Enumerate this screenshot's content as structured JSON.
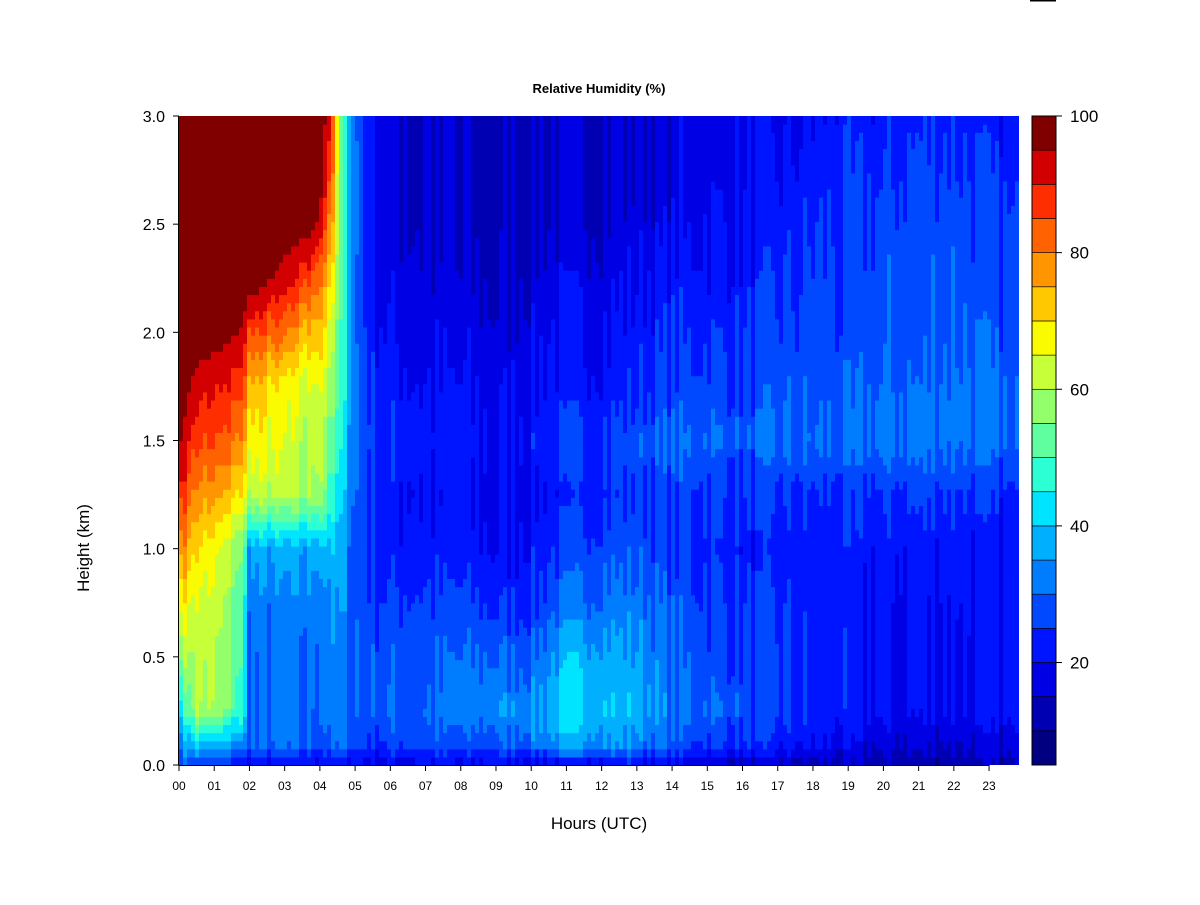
{
  "chart_data": {
    "type": "heatmap",
    "title": "Relative Humidity (%)",
    "xlabel": "Hours (UTC)",
    "ylabel": "Height (km)",
    "x_ticks": [
      "00",
      "01",
      "02",
      "03",
      "04",
      "05",
      "06",
      "07",
      "08",
      "09",
      "10",
      "11",
      "12",
      "13",
      "14",
      "15",
      "16",
      "17",
      "18",
      "19",
      "20",
      "21",
      "22",
      "23"
    ],
    "xlim": [
      0,
      23.85
    ],
    "y_ticks": [
      "0.0",
      "0.5",
      "1.0",
      "1.5",
      "2.0",
      "2.5",
      "3.0"
    ],
    "ylim": [
      0,
      3.0
    ],
    "colorbar": {
      "levels": [
        5,
        10,
        15,
        20,
        25,
        30,
        35,
        40,
        45,
        50,
        55,
        60,
        65,
        70,
        75,
        80,
        85,
        90,
        95,
        100
      ],
      "colors": [
        "#000080",
        "#0000B2",
        "#0000E5",
        "#0015FF",
        "#0049FF",
        "#007CFF",
        "#00B0FF",
        "#00E4FF",
        "#2CFFD3",
        "#5FFF9F",
        "#93FF6B",
        "#C7FF38",
        "#FAFA00",
        "#FFC800",
        "#FF9500",
        "#FF6200",
        "#FF2E00",
        "#D20000",
        "#800000"
      ],
      "tick_labels": [
        "20",
        "40",
        "60",
        "80",
        "100"
      ],
      "tick_values": [
        20,
        40,
        60,
        80,
        100
      ]
    },
    "heights_km": [
      0.0,
      0.1,
      0.25,
      0.5,
      0.75,
      1.0,
      1.25,
      1.5,
      1.75,
      2.0,
      2.25,
      2.5,
      2.75,
      3.0
    ],
    "grid_hours": [
      0,
      0.5,
      1.0,
      1.5,
      1.8,
      2.0,
      3.0,
      3.6,
      4.0,
      4.3,
      4.6,
      5.0,
      5.5,
      6,
      7,
      8,
      9,
      10,
      10.5,
      11,
      12,
      13,
      14,
      15,
      16,
      17,
      18,
      19,
      20,
      21,
      22,
      23,
      23.85
    ],
    "values": [
      [
        28,
        35,
        42,
        58,
        70,
        80,
        90,
        96,
        100,
        100,
        100,
        100,
        100,
        100
      ],
      [
        26,
        40,
        60,
        62,
        64,
        70,
        78,
        86,
        92,
        100,
        100,
        100,
        100,
        100
      ],
      [
        24,
        38,
        58,
        60,
        62,
        66,
        76,
        84,
        90,
        98,
        100,
        100,
        100,
        100
      ],
      [
        22,
        34,
        52,
        54,
        56,
        60,
        72,
        82,
        88,
        96,
        100,
        100,
        100,
        100
      ],
      [
        20,
        32,
        48,
        48,
        50,
        54,
        68,
        78,
        86,
        94,
        100,
        100,
        100,
        100
      ],
      [
        20,
        30,
        30,
        30,
        32,
        36,
        62,
        68,
        74,
        86,
        100,
        100,
        100,
        100
      ],
      [
        20,
        30,
        30,
        30,
        32,
        36,
        60,
        64,
        66,
        80,
        92,
        100,
        100,
        100
      ],
      [
        20,
        30,
        30,
        30,
        32,
        36,
        58,
        60,
        62,
        72,
        86,
        98,
        100,
        100
      ],
      [
        20,
        30,
        32,
        32,
        34,
        40,
        62,
        64,
        68,
        76,
        84,
        94,
        100,
        100
      ],
      [
        20,
        30,
        32,
        32,
        34,
        38,
        48,
        52,
        58,
        62,
        70,
        78,
        86,
        90
      ],
      [
        20,
        30,
        32,
        32,
        34,
        36,
        40,
        44,
        48,
        48,
        50,
        52,
        52,
        50
      ],
      [
        20,
        28,
        30,
        30,
        30,
        30,
        30,
        32,
        32,
        30,
        30,
        32,
        32,
        30
      ],
      [
        18,
        26,
        28,
        28,
        26,
        24,
        24,
        26,
        24,
        22,
        20,
        20,
        20,
        20
      ],
      [
        18,
        26,
        30,
        28,
        26,
        22,
        22,
        24,
        22,
        20,
        18,
        16,
        16,
        16
      ],
      [
        20,
        28,
        30,
        28,
        26,
        22,
        20,
        22,
        20,
        18,
        16,
        15,
        15,
        15
      ],
      [
        18,
        26,
        32,
        30,
        26,
        22,
        20,
        22,
        20,
        18,
        15,
        14,
        14,
        14
      ],
      [
        20,
        28,
        34,
        30,
        24,
        20,
        18,
        20,
        18,
        16,
        14,
        13,
        13,
        13
      ],
      [
        18,
        32,
        34,
        30,
        24,
        22,
        20,
        22,
        20,
        18,
        16,
        14,
        14,
        14
      ],
      [
        18,
        34,
        38,
        34,
        28,
        24,
        22,
        24,
        22,
        20,
        18,
        15,
        15,
        15
      ],
      [
        18,
        36,
        42,
        38,
        30,
        26,
        22,
        24,
        22,
        20,
        18,
        16,
        15,
        15
      ],
      [
        20,
        36,
        40,
        38,
        32,
        28,
        24,
        26,
        22,
        20,
        18,
        16,
        15,
        15
      ],
      [
        20,
        34,
        38,
        36,
        32,
        28,
        26,
        28,
        24,
        22,
        20,
        17,
        16,
        16
      ],
      [
        18,
        28,
        32,
        30,
        28,
        26,
        26,
        30,
        26,
        24,
        22,
        18,
        17,
        17
      ],
      [
        16,
        26,
        30,
        28,
        26,
        24,
        26,
        30,
        28,
        24,
        22,
        20,
        18,
        18
      ],
      [
        15,
        24,
        28,
        26,
        24,
        22,
        24,
        28,
        26,
        24,
        22,
        20,
        18,
        18
      ],
      [
        14,
        22,
        26,
        26,
        24,
        22,
        24,
        30,
        28,
        26,
        24,
        22,
        20,
        18
      ],
      [
        13,
        20,
        24,
        24,
        22,
        22,
        24,
        30,
        28,
        26,
        26,
        24,
        22,
        20
      ],
      [
        12,
        18,
        22,
        22,
        22,
        22,
        24,
        30,
        28,
        26,
        26,
        26,
        24,
        22
      ],
      [
        12,
        16,
        20,
        20,
        20,
        22,
        24,
        32,
        30,
        28,
        28,
        26,
        24,
        22
      ],
      [
        12,
        16,
        20,
        20,
        20,
        22,
        26,
        32,
        30,
        28,
        28,
        28,
        26,
        24
      ],
      [
        12,
        16,
        20,
        20,
        22,
        22,
        26,
        32,
        32,
        30,
        30,
        28,
        26,
        24
      ],
      [
        12,
        16,
        20,
        20,
        20,
        20,
        24,
        30,
        30,
        28,
        26,
        26,
        24,
        22
      ],
      [
        12,
        16,
        20,
        20,
        20,
        20,
        22,
        28,
        28,
        26,
        24,
        24,
        22,
        20
      ]
    ]
  }
}
